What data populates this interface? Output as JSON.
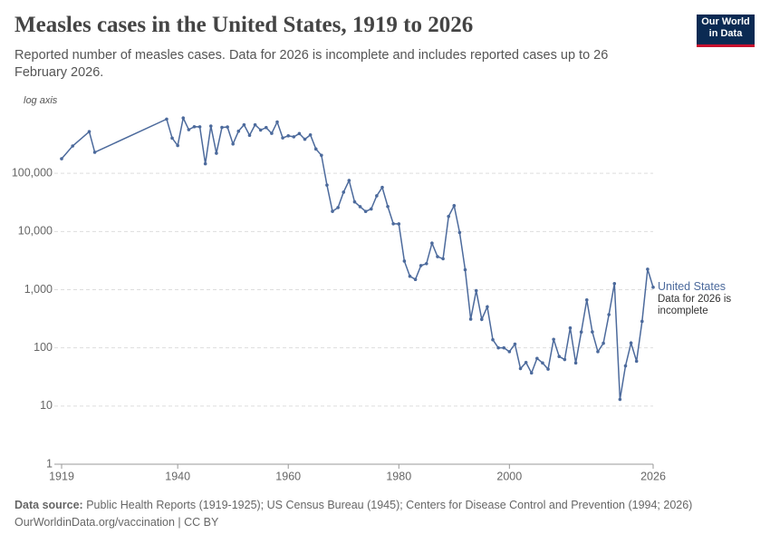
{
  "header": {
    "title": "Measles cases in the United States, 1919 to 2026",
    "subtitle": "Reported number of measles cases. Data for 2026 is incomplete and includes reported cases up to 26 February 2026.",
    "logo": "Our World in Data"
  },
  "chart_data": {
    "type": "line",
    "axis_note": "log axis",
    "log_scale": true,
    "grid": true,
    "x": [
      1919,
      1921,
      1924,
      1925,
      1938,
      1939,
      1940,
      1941,
      1942,
      1943,
      1944,
      1945,
      1946,
      1947,
      1948,
      1949,
      1950,
      1951,
      1952,
      1953,
      1954,
      1955,
      1956,
      1957,
      1958,
      1959,
      1960,
      1961,
      1962,
      1963,
      1964,
      1965,
      1966,
      1967,
      1968,
      1969,
      1970,
      1971,
      1972,
      1973,
      1974,
      1975,
      1976,
      1977,
      1978,
      1979,
      1980,
      1981,
      1982,
      1983,
      1984,
      1985,
      1986,
      1987,
      1988,
      1989,
      1990,
      1991,
      1992,
      1993,
      1994,
      1995,
      1996,
      1997,
      1998,
      1999,
      2000,
      2001,
      2002,
      2003,
      2004,
      2005,
      2006,
      2007,
      2008,
      2009,
      2010,
      2011,
      2012,
      2013,
      2014,
      2015,
      2016,
      2017,
      2018,
      2019,
      2020,
      2021,
      2022,
      2023,
      2024,
      2025,
      2026
    ],
    "series": [
      {
        "name": "United States",
        "color": "#4c6a9c",
        "values": [
          178000,
          295000,
          521000,
          230000,
          855000,
          403000,
          300000,
          894000,
          563000,
          633000,
          630000,
          146000,
          650000,
          222000,
          615000,
          625000,
          320000,
          530000,
          683000,
          450000,
          683000,
          555000,
          611000,
          486000,
          763000,
          406000,
          441000,
          424000,
          482000,
          385000,
          458000,
          262000,
          204000,
          62700,
          22200,
          25800,
          47400,
          75300,
          32300,
          26700,
          22100,
          24400,
          41100,
          57300,
          26900,
          13600,
          13500,
          3100,
          1700,
          1500,
          2600,
          2800,
          6300,
          3700,
          3400,
          18200,
          27800,
          9600,
          2200,
          312,
          963,
          309,
          508,
          138,
          100,
          100,
          86,
          116,
          44,
          56,
          37,
          66,
          55,
          43,
          140,
          71,
          63,
          220,
          55,
          187,
          667,
          188,
          86,
          120,
          372,
          1274,
          13,
          49,
          121,
          59,
          285,
          2250,
          1100
        ]
      }
    ],
    "annotation": "Data for 2026 is incomplete",
    "xlim": [
      1919,
      2026
    ],
    "xticks": [
      1919,
      1940,
      1960,
      1980,
      2000,
      2026
    ],
    "ylim": [
      1,
      1000000
    ],
    "yticks": [
      1,
      10,
      100,
      {
        "value": 1000,
        "label": "1,000"
      },
      {
        "value": 10000,
        "label": "10,000"
      },
      {
        "value": 100000,
        "label": "100,000"
      }
    ]
  },
  "footer": {
    "source_label": "Data source:",
    "source": "Public Health Reports (1919-1925); US Census Bureau (1945); Centers for Disease Control and Prevention (1994; 2026)",
    "link": "OurWorldinData.org/vaccination | CC BY"
  }
}
